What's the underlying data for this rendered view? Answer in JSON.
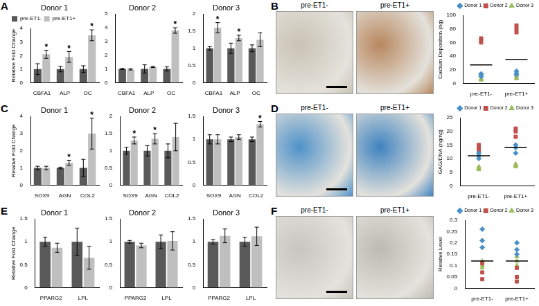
{
  "panel_labels": [
    "A",
    "B",
    "C",
    "D",
    "E",
    "F"
  ],
  "photo_panels": [
    {
      "labels": [
        "pre-ET1-",
        "pre-ET1+"
      ]
    },
    {
      "labels": [
        "pre-ET1-",
        "pre-ET1+"
      ]
    },
    {
      "labels": [
        "pre-ET1-",
        "pre-ET1+"
      ]
    }
  ],
  "chart_data": [
    {
      "type": "bar",
      "title": "Donor 1",
      "y_label": "Relative Fold Change",
      "categories": [
        "CBFA1",
        "ALP",
        "OC"
      ],
      "series": [
        {
          "name": "pre-ET1-",
          "color": "#595959",
          "values": [
            1,
            1,
            1
          ],
          "errors": [
            0.4,
            0.2,
            0.25
          ]
        },
        {
          "name": "pre-ET1+",
          "color": "#bfbfbf",
          "values": [
            2.1,
            1.9,
            3.5
          ],
          "errors": [
            0.3,
            0.4,
            0.4
          ]
        }
      ],
      "ylim": [
        0,
        4
      ],
      "yticks": [
        0,
        1,
        2,
        3,
        4
      ],
      "grid": false,
      "legend": "top-left",
      "annotations": [
        {
          "category": "CBFA1",
          "series": "pre-ET1+",
          "text": "*"
        },
        {
          "category": "ALP",
          "series": "pre-ET1+",
          "text": "*"
        },
        {
          "category": "OC",
          "series": "pre-ET1+",
          "text": "*"
        }
      ]
    },
    {
      "type": "bar",
      "title": "Donor 2",
      "categories": [
        "CBFA1",
        "ALP",
        "OC"
      ],
      "series": [
        {
          "name": "pre-ET1-",
          "color": "#595959",
          "values": [
            1,
            1,
            1
          ],
          "errors": [
            0.05,
            0.3,
            0.15
          ]
        },
        {
          "name": "pre-ET1+",
          "color": "#bfbfbf",
          "values": [
            0.97,
            1.15,
            3.8
          ],
          "errors": [
            0.05,
            0.05,
            0.2
          ]
        }
      ],
      "ylim": [
        0,
        5
      ],
      "yticks": [
        0,
        1,
        2,
        3,
        4,
        5
      ],
      "grid": false,
      "annotations": [
        {
          "category": "OC",
          "series": "pre-ET1+",
          "text": "*"
        }
      ]
    },
    {
      "type": "bar",
      "title": "Donor 3",
      "categories": [
        "CBFA1",
        "ALP",
        "OC"
      ],
      "series": [
        {
          "name": "pre-ET1-",
          "color": "#595959",
          "values": [
            1,
            1,
            1
          ],
          "errors": [
            0.05,
            0.15,
            0.1
          ]
        },
        {
          "name": "pre-ET1+",
          "color": "#bfbfbf",
          "values": [
            1.6,
            1.3,
            1.25
          ],
          "errors": [
            0.15,
            0.08,
            0.2
          ]
        }
      ],
      "ylim": [
        0,
        2
      ],
      "yticks": [
        0,
        0.5,
        1,
        1.5,
        2
      ],
      "grid": false,
      "annotations": [
        {
          "category": "CBFA1",
          "series": "pre-ET1+",
          "text": "*"
        },
        {
          "category": "ALP",
          "series": "pre-ET1+",
          "text": "*"
        }
      ]
    },
    {
      "type": "bar",
      "title": "Donor 1",
      "y_label": "Relative Fold Change",
      "categories": [
        "SOX9",
        "AGN",
        "COL2"
      ],
      "series": [
        {
          "name": "pre-ET1-",
          "color": "#595959",
          "values": [
            1,
            1,
            1
          ],
          "errors": [
            0.1,
            0.05,
            0.5
          ]
        },
        {
          "name": "pre-ET1+",
          "color": "#bfbfbf",
          "values": [
            1,
            1.3,
            3
          ],
          "errors": [
            0.1,
            0.15,
            0.9
          ]
        }
      ],
      "ylim": [
        0,
        4
      ],
      "yticks": [
        0,
        1,
        2,
        3,
        4
      ],
      "grid": false,
      "annotations": [
        {
          "category": "AGN",
          "series": "pre-ET1+",
          "text": "*"
        },
        {
          "category": "COL2",
          "series": "pre-ET1+",
          "text": "*"
        }
      ]
    },
    {
      "type": "bar",
      "title": "Donor 2",
      "categories": [
        "SOX9",
        "AGN",
        "COL2"
      ],
      "series": [
        {
          "name": "pre-ET1-",
          "color": "#595959",
          "values": [
            1,
            1,
            1
          ],
          "errors": [
            0.1,
            0.15,
            0.2
          ]
        },
        {
          "name": "pre-ET1+",
          "color": "#bfbfbf",
          "values": [
            1.3,
            1.35,
            1.4
          ],
          "errors": [
            0.1,
            0.15,
            0.4
          ]
        }
      ],
      "ylim": [
        0,
        2
      ],
      "yticks": [
        0,
        0.5,
        1,
        1.5,
        2
      ],
      "grid": false,
      "annotations": [
        {
          "category": "SOX9",
          "series": "pre-ET1+",
          "text": "*"
        },
        {
          "category": "AGN",
          "series": "pre-ET1+",
          "text": "*"
        }
      ]
    },
    {
      "type": "bar",
      "title": "Donor 3",
      "categories": [
        "SOX9",
        "AGN",
        "COL2"
      ],
      "series": [
        {
          "name": "pre-ET1-",
          "color": "#595959",
          "values": [
            1,
            1,
            1
          ],
          "errors": [
            0.1,
            0.05,
            0.05
          ]
        },
        {
          "name": "pre-ET1+",
          "color": "#bfbfbf",
          "values": [
            1,
            1.05,
            1.33
          ],
          "errors": [
            0.1,
            0.05,
            0.06
          ]
        }
      ],
      "ylim": [
        0,
        1.5
      ],
      "yticks": [
        0,
        0.5,
        1,
        1.5
      ],
      "grid": false,
      "annotations": [
        {
          "category": "COL2",
          "series": "pre-ET1+",
          "text": "*"
        }
      ]
    },
    {
      "type": "bar",
      "title": "Donor 1",
      "y_label": "Relative Fold Change",
      "categories": [
        "PPARG2",
        "LPL"
      ],
      "series": [
        {
          "name": "pre-ET1-",
          "color": "#595959",
          "values": [
            1,
            1
          ],
          "errors": [
            0.1,
            0.3
          ]
        },
        {
          "name": "pre-ET1+",
          "color": "#bfbfbf",
          "values": [
            0.87,
            0.65
          ],
          "errors": [
            0.1,
            0.25
          ]
        }
      ],
      "ylim": [
        0,
        1.5
      ],
      "yticks": [
        0,
        0.5,
        1,
        1.5
      ],
      "grid": false
    },
    {
      "type": "bar",
      "title": "Donor 2",
      "categories": [
        "PPARG2",
        "LPL"
      ],
      "series": [
        {
          "name": "pre-ET1-",
          "color": "#595959",
          "values": [
            1,
            1
          ],
          "errors": [
            0.03,
            0.15
          ]
        },
        {
          "name": "pre-ET1+",
          "color": "#bfbfbf",
          "values": [
            0.92,
            1.02
          ],
          "errors": [
            0.05,
            0.2
          ]
        }
      ],
      "ylim": [
        0,
        1.5
      ],
      "yticks": [
        0,
        0.5,
        1,
        1.5
      ],
      "grid": false
    },
    {
      "type": "bar",
      "title": "Donor 3",
      "categories": [
        "PPARG2",
        "LPL"
      ],
      "series": [
        {
          "name": "pre-ET1-",
          "color": "#595959",
          "values": [
            1,
            1
          ],
          "errors": [
            0.05,
            0.1
          ]
        },
        {
          "name": "pre-ET1+",
          "color": "#bfbfbf",
          "values": [
            1.13,
            1.12
          ],
          "errors": [
            0.15,
            0.2
          ]
        }
      ],
      "ylim": [
        0,
        1.5
      ],
      "yticks": [
        0,
        0.5,
        1,
        1.5
      ],
      "grid": false
    },
    {
      "type": "scatter",
      "y_label": "Calcium Deposition (ng)",
      "categories": [
        "pre-ET1-",
        "pre-ET1+"
      ],
      "series": [
        {
          "name": "Donor 1",
          "color": "#4a90c8",
          "marker": "diamond",
          "values": [
            [
              14,
              13,
              10
            ],
            [
              18,
              15,
              13
            ]
          ]
        },
        {
          "name": "Donor 2",
          "color": "#c0504d",
          "marker": "square",
          "values": [
            [
              66,
              63,
              60
            ],
            [
              85,
              80,
              75
            ]
          ]
        },
        {
          "name": "Donor 3",
          "color": "#9bbb59",
          "marker": "triangle",
          "values": [
            [
              7,
              6,
              5
            ],
            [
              12,
              9,
              7
            ]
          ]
        }
      ],
      "mean_values": [
        27,
        35
      ],
      "ylim": [
        0,
        100
      ],
      "yticks": [
        0,
        20,
        40,
        60,
        80,
        100
      ],
      "grid": false,
      "legend": "top-right"
    },
    {
      "type": "scatter",
      "y_label": "GAG/DNA (ng/ng)",
      "categories": [
        "pre-ET1-",
        "pre-ET1+"
      ],
      "series": [
        {
          "name": "Donor 1",
          "color": "#4a90c8",
          "marker": "diamond",
          "values": [
            [
              12,
              11,
              10
            ],
            [
              15,
              14,
              12
            ]
          ]
        },
        {
          "name": "Donor 2",
          "color": "#c0504d",
          "marker": "square",
          "values": [
            [
              15,
              14,
              13
            ],
            [
              21,
              20,
              18
            ]
          ]
        },
        {
          "name": "Donor 3",
          "color": "#9bbb59",
          "marker": "triangle",
          "values": [
            [
              7,
              6.5,
              6
            ],
            [
              8,
              7.5,
              7
            ]
          ]
        }
      ],
      "mean_values": [
        11,
        14
      ],
      "ylim": [
        0,
        25
      ],
      "yticks": [
        0,
        5,
        10,
        15,
        20,
        25
      ],
      "grid": false,
      "legend": "top-right"
    },
    {
      "type": "scatter",
      "y_label": "Relative Level",
      "categories": [
        "pre-ET1-",
        "pre-ET1+"
      ],
      "series": [
        {
          "name": "Donor 1",
          "color": "#4a90c8",
          "marker": "diamond",
          "values": [
            [
              0.26,
              0.21,
              0.18
            ],
            [
              0.2,
              0.17,
              0.15
            ]
          ]
        },
        {
          "name": "Donor 2",
          "color": "#c0504d",
          "marker": "square",
          "values": [
            [
              0.07,
              0.04,
              0.11
            ],
            [
              0.09,
              0.05,
              0.03
            ]
          ]
        },
        {
          "name": "Donor 3",
          "color": "#9bbb59",
          "marker": "triangle",
          "values": [
            [
              0.09,
              0.1,
              0.12
            ],
            [
              0.12,
              0.14,
              0.1
            ]
          ]
        }
      ],
      "mean_values": [
        0.12,
        0.12
      ],
      "ylim": [
        0,
        0.3
      ],
      "yticks": [
        0,
        0.05,
        0.1,
        0.15,
        0.2,
        0.25,
        0.3
      ],
      "grid": false,
      "legend": "top-right"
    }
  ]
}
